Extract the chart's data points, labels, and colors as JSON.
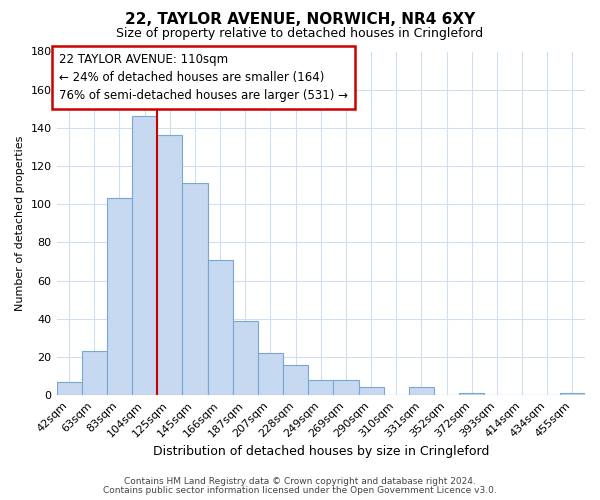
{
  "title_line1": "22, TAYLOR AVENUE, NORWICH, NR4 6XY",
  "title_line2": "Size of property relative to detached houses in Cringleford",
  "xlabel": "Distribution of detached houses by size in Cringleford",
  "ylabel": "Number of detached properties",
  "footer_line1": "Contains HM Land Registry data © Crown copyright and database right 2024.",
  "footer_line2": "Contains public sector information licensed under the Open Government Licence v3.0.",
  "bar_labels": [
    "42sqm",
    "63sqm",
    "83sqm",
    "104sqm",
    "125sqm",
    "145sqm",
    "166sqm",
    "187sqm",
    "207sqm",
    "228sqm",
    "249sqm",
    "269sqm",
    "290sqm",
    "310sqm",
    "331sqm",
    "352sqm",
    "372sqm",
    "393sqm",
    "414sqm",
    "434sqm",
    "455sqm"
  ],
  "bar_values": [
    7,
    23,
    103,
    146,
    136,
    111,
    71,
    39,
    22,
    16,
    8,
    8,
    4,
    0,
    4,
    0,
    1,
    0,
    0,
    0,
    1
  ],
  "bar_color": "#c6d9f0",
  "bar_edge_color": "#7aa6d4",
  "ylim": [
    0,
    180
  ],
  "yticks": [
    0,
    20,
    40,
    60,
    80,
    100,
    120,
    140,
    160,
    180
  ],
  "vline_x": 3.5,
  "vline_color": "#cc0000",
  "annotation_title": "22 TAYLOR AVENUE: 110sqm",
  "annotation_line1": "← 24% of detached houses are smaller (164)",
  "annotation_line2": "76% of semi-detached houses are larger (531) →",
  "background_color": "#ffffff",
  "grid_color": "#d0dff0",
  "title_fontsize": 11,
  "subtitle_fontsize": 9,
  "xlabel_fontsize": 9,
  "ylabel_fontsize": 8,
  "tick_fontsize": 8,
  "annot_fontsize": 8.5,
  "footer_fontsize": 6.5
}
